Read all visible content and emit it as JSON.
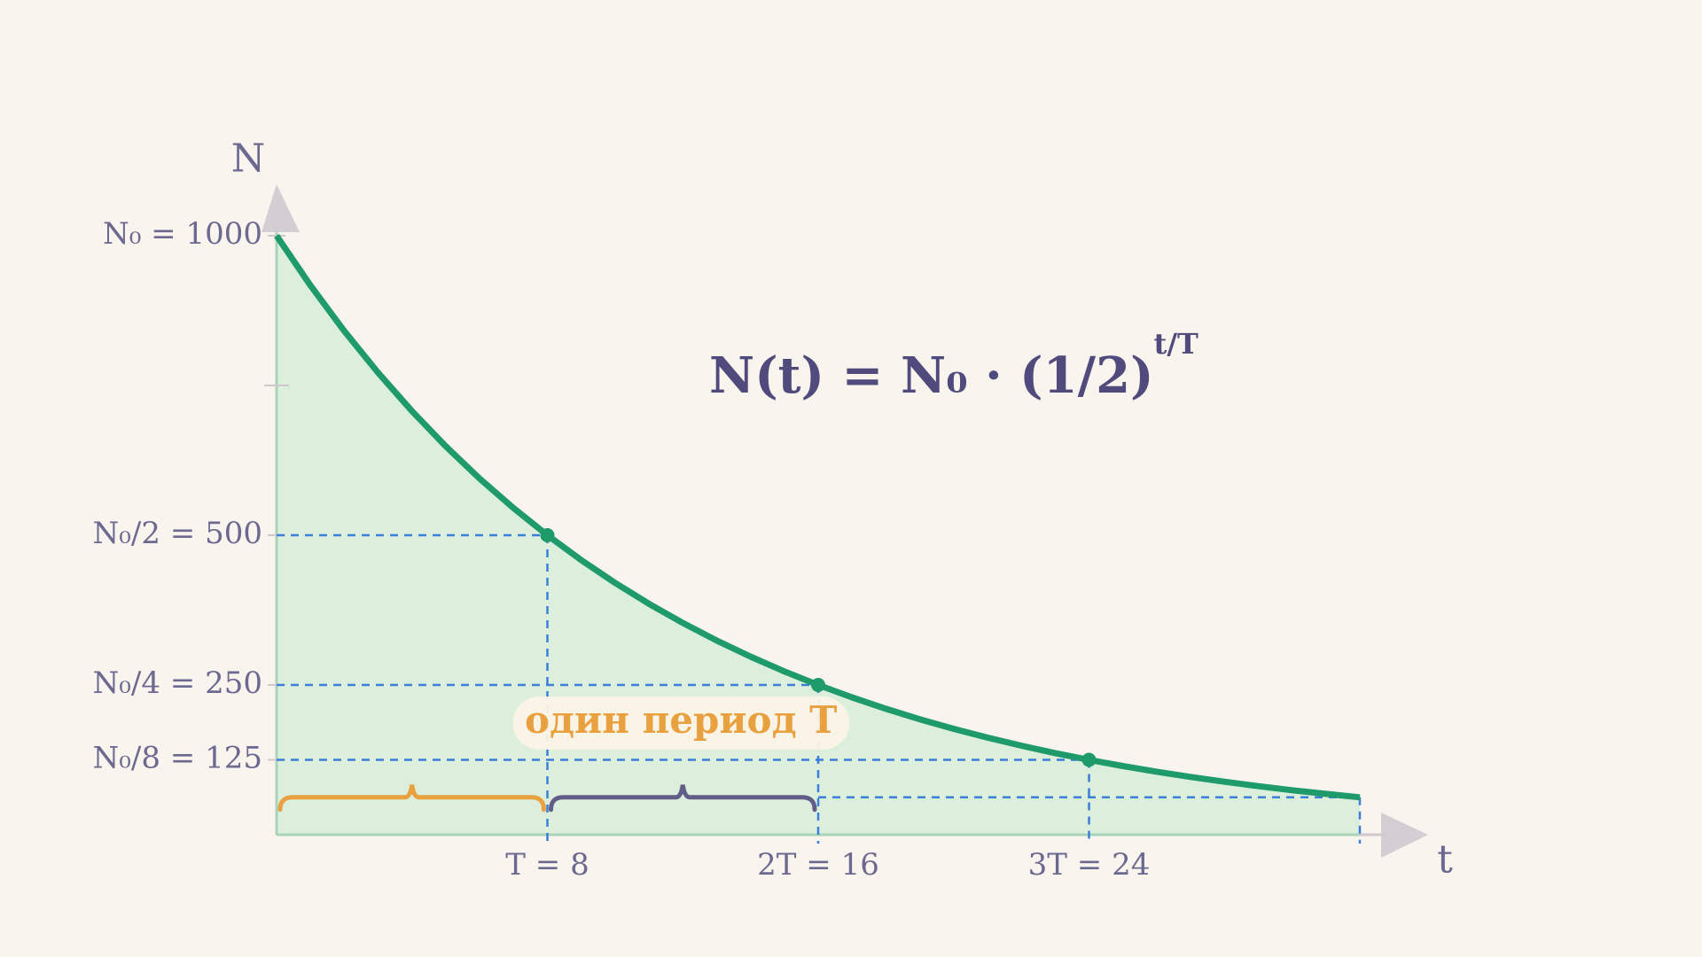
{
  "chart_data": {
    "type": "line",
    "formula": "N(t) = N₀ · (1/2)",
    "formula_exponent": "t/T",
    "x_label": "t",
    "y_label": "N",
    "annotation": "один период T",
    "xlim": [
      0,
      32
    ],
    "ylim": [
      0,
      1000
    ],
    "xticks": [
      {
        "value": 8,
        "label": "T = 8"
      },
      {
        "value": 16,
        "label": "2T = 16"
      },
      {
        "value": 24,
        "label": "3T = 24"
      }
    ],
    "yticks": [
      {
        "value": 1000,
        "label": "N₀ = 1000"
      },
      {
        "value": 500,
        "label": "N₀/2 = 500"
      },
      {
        "value": 250,
        "label": "N₀/4 = 250"
      },
      {
        "value": 125,
        "label": "N₀/8 = 125"
      }
    ],
    "minor_yticks": [
      750
    ],
    "series": [
      {
        "color": "#1f9a6b",
        "fill": "#dcefdc",
        "x": [
          0,
          1,
          2,
          3,
          4,
          5,
          6,
          7,
          8,
          9,
          10,
          11,
          12,
          13,
          14,
          15,
          16,
          17,
          18,
          19,
          20,
          21,
          22,
          23,
          24,
          25,
          26,
          27,
          28,
          29,
          30,
          31,
          32
        ],
        "values": [
          1000,
          917.0,
          840.9,
          771.11,
          707.11,
          648.42,
          594.6,
          545.25,
          500,
          458.5,
          420.45,
          385.55,
          353.55,
          324.21,
          297.3,
          272.63,
          250,
          229.25,
          210.22,
          192.78,
          176.78,
          162.1,
          148.65,
          136.31,
          125,
          114.63,
          105.11,
          96.39,
          88.39,
          81.05,
          74.33,
          68.16,
          62.5
        ]
      }
    ],
    "markers": {
      "x": [
        8,
        16,
        24
      ],
      "values": [
        500,
        250,
        125
      ]
    },
    "guide_color": "#3b7fd8",
    "brace_colors": [
      "#e9a13f",
      "#615d88"
    ]
  }
}
